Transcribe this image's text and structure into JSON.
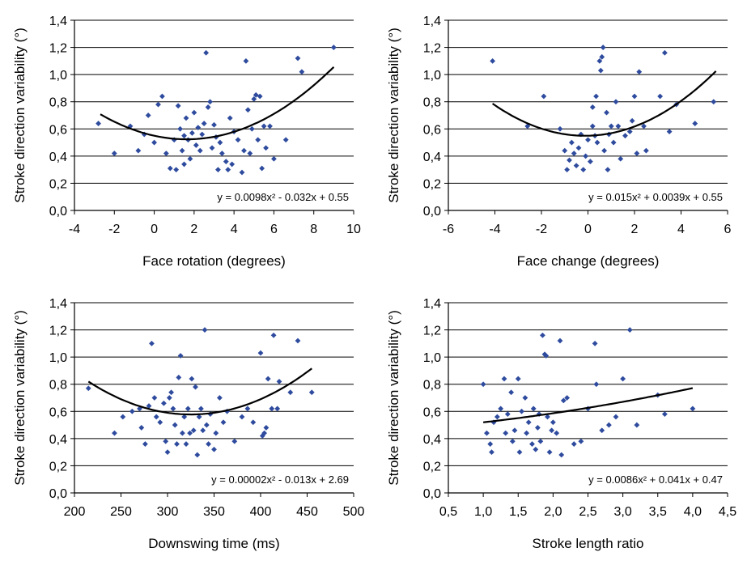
{
  "colors": {
    "point": "#2E4B9E",
    "trend": "#000000",
    "grid": "#000000",
    "axis": "#000000"
  },
  "chart_data": [
    {
      "type": "scatter",
      "title": "",
      "xlabel": "Face rotation (degrees)",
      "ylabel": "Stroke direction variability (°)",
      "xlim": [
        -4,
        10
      ],
      "ylim": [
        0,
        1.4
      ],
      "x_ticks": [
        "-4",
        "-2",
        "0",
        "2",
        "4",
        "6",
        "8",
        "10"
      ],
      "y_ticks": [
        "0,0",
        "0,2",
        "0,4",
        "0,6",
        "0,8",
        "1,0",
        "1,2",
        "1,4"
      ],
      "grid": true,
      "equation": "y = 0.0098x² - 0.032x + 0.55",
      "trend": {
        "a": 0.0098,
        "b": -0.032,
        "c": 0.55,
        "x_from": -2.7,
        "x_to": 9.0
      },
      "points": [
        [
          -2.8,
          0.64
        ],
        [
          -2.0,
          0.42
        ],
        [
          -1.2,
          0.62
        ],
        [
          -0.8,
          0.44
        ],
        [
          -0.5,
          0.56
        ],
        [
          -0.3,
          0.7
        ],
        [
          0.0,
          0.5
        ],
        [
          0.2,
          0.78
        ],
        [
          0.4,
          0.84
        ],
        [
          0.6,
          0.42
        ],
        [
          0.8,
          0.31
        ],
        [
          1.0,
          0.52
        ],
        [
          1.1,
          0.3
        ],
        [
          1.2,
          0.77
        ],
        [
          1.3,
          0.6
        ],
        [
          1.4,
          0.44
        ],
        [
          1.5,
          0.34
        ],
        [
          1.5,
          0.55
        ],
        [
          1.6,
          0.68
        ],
        [
          1.7,
          0.52
        ],
        [
          1.8,
          0.38
        ],
        [
          1.9,
          0.57
        ],
        [
          2.0,
          0.72
        ],
        [
          2.1,
          0.48
        ],
        [
          2.2,
          0.61
        ],
        [
          2.3,
          0.44
        ],
        [
          2.4,
          0.56
        ],
        [
          2.5,
          0.64
        ],
        [
          2.6,
          1.16
        ],
        [
          2.7,
          0.76
        ],
        [
          2.8,
          0.8
        ],
        [
          2.9,
          0.46
        ],
        [
          3.0,
          0.63
        ],
        [
          3.1,
          0.54
        ],
        [
          3.2,
          0.3
        ],
        [
          3.3,
          0.5
        ],
        [
          3.4,
          0.42
        ],
        [
          3.6,
          0.36
        ],
        [
          3.7,
          0.3
        ],
        [
          3.8,
          0.68
        ],
        [
          3.9,
          0.34
        ],
        [
          4.0,
          0.58
        ],
        [
          4.2,
          0.52
        ],
        [
          4.4,
          0.28
        ],
        [
          4.5,
          0.44
        ],
        [
          4.6,
          1.1
        ],
        [
          4.7,
          0.74
        ],
        [
          4.8,
          0.42
        ],
        [
          4.9,
          0.6
        ],
        [
          5.0,
          0.82
        ],
        [
          5.1,
          0.85
        ],
        [
          5.2,
          0.52
        ],
        [
          5.3,
          0.84
        ],
        [
          5.4,
          0.31
        ],
        [
          5.5,
          0.62
        ],
        [
          5.6,
          0.46
        ],
        [
          5.8,
          0.62
        ],
        [
          6.0,
          0.38
        ],
        [
          6.6,
          0.52
        ],
        [
          7.2,
          1.12
        ],
        [
          7.4,
          1.02
        ],
        [
          9.0,
          1.2
        ]
      ]
    },
    {
      "type": "scatter",
      "title": "",
      "xlabel": "Face change (degrees)",
      "ylabel": "Stroke direction variability (°)",
      "xlim": [
        -6,
        6
      ],
      "ylim": [
        0,
        1.4
      ],
      "x_ticks": [
        "-6",
        "-4",
        "-2",
        "0",
        "2",
        "4",
        "6"
      ],
      "y_ticks": [
        "0,0",
        "0,2",
        "0,4",
        "0,6",
        "0,8",
        "1,0",
        "1,2",
        "1,4"
      ],
      "grid": true,
      "equation": "y = 0.015x² + 0.0039x + 0.55",
      "trend": {
        "a": 0.015,
        "b": 0.0039,
        "c": 0.55,
        "x_from": -4.1,
        "x_to": 5.5
      },
      "points": [
        [
          -4.1,
          1.1
        ],
        [
          -2.6,
          0.62
        ],
        [
          -1.9,
          0.84
        ],
        [
          -1.2,
          0.6
        ],
        [
          -1.0,
          0.44
        ],
        [
          -0.9,
          0.3
        ],
        [
          -0.8,
          0.37
        ],
        [
          -0.7,
          0.5
        ],
        [
          -0.6,
          0.42
        ],
        [
          -0.5,
          0.33
        ],
        [
          -0.4,
          0.46
        ],
        [
          -0.3,
          0.56
        ],
        [
          -0.2,
          0.3
        ],
        [
          -0.1,
          0.4
        ],
        [
          0.0,
          0.52
        ],
        [
          0.1,
          0.36
        ],
        [
          0.2,
          0.62
        ],
        [
          0.2,
          0.76
        ],
        [
          0.3,
          0.55
        ],
        [
          0.35,
          0.84
        ],
        [
          0.4,
          0.5
        ],
        [
          0.5,
          1.1
        ],
        [
          0.55,
          1.03
        ],
        [
          0.6,
          1.13
        ],
        [
          0.65,
          1.2
        ],
        [
          0.7,
          0.44
        ],
        [
          0.8,
          0.72
        ],
        [
          0.85,
          0.3
        ],
        [
          0.9,
          0.56
        ],
        [
          1.0,
          0.62
        ],
        [
          1.1,
          0.5
        ],
        [
          1.2,
          0.8
        ],
        [
          1.3,
          0.62
        ],
        [
          1.4,
          0.38
        ],
        [
          1.6,
          0.55
        ],
        [
          1.8,
          0.58
        ],
        [
          1.9,
          0.66
        ],
        [
          2.0,
          0.84
        ],
        [
          2.1,
          0.42
        ],
        [
          2.2,
          1.02
        ],
        [
          2.4,
          0.62
        ],
        [
          2.5,
          0.44
        ],
        [
          3.1,
          0.84
        ],
        [
          3.3,
          1.16
        ],
        [
          3.5,
          0.58
        ],
        [
          3.8,
          0.78
        ],
        [
          4.6,
          0.64
        ],
        [
          5.4,
          0.8
        ]
      ]
    },
    {
      "type": "scatter",
      "title": "",
      "xlabel": "Downswing time (ms)",
      "ylabel": "Stroke direction variability (°)",
      "xlim": [
        200,
        500
      ],
      "ylim": [
        0,
        1.4
      ],
      "x_ticks": [
        "200",
        "250",
        "300",
        "350",
        "400",
        "450",
        "500"
      ],
      "y_ticks": [
        "0,0",
        "0,2",
        "0,4",
        "0,6",
        "0,8",
        "1,0",
        "1,2",
        "1,4"
      ],
      "grid": true,
      "equation": "y = 0.00002x² - 0.013x + 2.69",
      "trend": {
        "a": 2e-05,
        "b": -0.013,
        "c": 2.69,
        "x_from": 215,
        "x_to": 455
      },
      "points": [
        [
          215,
          0.77
        ],
        [
          243,
          0.44
        ],
        [
          252,
          0.56
        ],
        [
          262,
          0.6
        ],
        [
          270,
          0.62
        ],
        [
          272,
          0.48
        ],
        [
          276,
          0.36
        ],
        [
          280,
          0.64
        ],
        [
          283,
          1.1
        ],
        [
          286,
          0.7
        ],
        [
          288,
          0.56
        ],
        [
          292,
          0.52
        ],
        [
          296,
          0.66
        ],
        [
          298,
          0.38
        ],
        [
          300,
          0.3
        ],
        [
          302,
          0.7
        ],
        [
          304,
          0.74
        ],
        [
          306,
          0.62
        ],
        [
          308,
          0.5
        ],
        [
          310,
          0.36
        ],
        [
          312,
          0.85
        ],
        [
          314,
          1.01
        ],
        [
          316,
          0.44
        ],
        [
          318,
          0.56
        ],
        [
          320,
          0.36
        ],
        [
          322,
          0.62
        ],
        [
          324,
          0.44
        ],
        [
          326,
          0.84
        ],
        [
          328,
          0.46
        ],
        [
          330,
          0.78
        ],
        [
          332,
          0.28
        ],
        [
          334,
          0.56
        ],
        [
          336,
          0.62
        ],
        [
          338,
          0.46
        ],
        [
          340,
          1.2
        ],
        [
          342,
          0.5
        ],
        [
          344,
          0.36
        ],
        [
          346,
          0.58
        ],
        [
          350,
          0.32
        ],
        [
          352,
          0.44
        ],
        [
          356,
          0.7
        ],
        [
          360,
          0.52
        ],
        [
          364,
          0.6
        ],
        [
          372,
          0.38
        ],
        [
          380,
          0.56
        ],
        [
          386,
          0.62
        ],
        [
          392,
          0.52
        ],
        [
          400,
          1.03
        ],
        [
          402,
          0.42
        ],
        [
          404,
          0.44
        ],
        [
          406,
          0.48
        ],
        [
          408,
          0.84
        ],
        [
          412,
          0.62
        ],
        [
          414,
          1.16
        ],
        [
          418,
          0.62
        ],
        [
          420,
          0.82
        ],
        [
          432,
          0.74
        ],
        [
          440,
          1.12
        ],
        [
          455,
          0.74
        ]
      ]
    },
    {
      "type": "scatter",
      "title": "",
      "xlabel": "Stroke length ratio",
      "ylabel": "Stroke direction variability (°)",
      "xlim": [
        0.5,
        4.5
      ],
      "ylim": [
        0,
        1.4
      ],
      "x_ticks": [
        "0,5",
        "1,0",
        "1,5",
        "2,0",
        "2,5",
        "3,0",
        "3,5",
        "4,0",
        "4,5"
      ],
      "y_ticks": [
        "0,0",
        "0,2",
        "0,4",
        "0,6",
        "0,8",
        "1,0",
        "1,2",
        "1,4"
      ],
      "grid": true,
      "equation": "y = 0.0086x² + 0.041x + 0.47",
      "trend": {
        "a": 0.0086,
        "b": 0.041,
        "c": 0.47,
        "x_from": 1.0,
        "x_to": 4.0
      },
      "points": [
        [
          1.0,
          0.8
        ],
        [
          1.05,
          0.44
        ],
        [
          1.1,
          0.36
        ],
        [
          1.12,
          0.3
        ],
        [
          1.15,
          0.52
        ],
        [
          1.2,
          0.56
        ],
        [
          1.25,
          0.62
        ],
        [
          1.3,
          0.84
        ],
        [
          1.32,
          0.44
        ],
        [
          1.35,
          0.58
        ],
        [
          1.4,
          0.74
        ],
        [
          1.42,
          0.38
        ],
        [
          1.45,
          0.46
        ],
        [
          1.5,
          0.84
        ],
        [
          1.52,
          0.3
        ],
        [
          1.55,
          0.6
        ],
        [
          1.6,
          0.7
        ],
        [
          1.62,
          0.44
        ],
        [
          1.65,
          0.52
        ],
        [
          1.7,
          0.36
        ],
        [
          1.72,
          0.62
        ],
        [
          1.75,
          0.32
        ],
        [
          1.78,
          0.48
        ],
        [
          1.8,
          0.58
        ],
        [
          1.82,
          0.38
        ],
        [
          1.85,
          1.16
        ],
        [
          1.88,
          1.02
        ],
        [
          1.9,
          1.01
        ],
        [
          1.92,
          0.56
        ],
        [
          1.95,
          0.3
        ],
        [
          1.98,
          0.46
        ],
        [
          2.0,
          0.52
        ],
        [
          2.05,
          0.44
        ],
        [
          2.1,
          1.12
        ],
        [
          2.12,
          0.28
        ],
        [
          2.15,
          0.68
        ],
        [
          2.2,
          0.7
        ],
        [
          2.3,
          0.36
        ],
        [
          2.4,
          0.38
        ],
        [
          2.5,
          0.62
        ],
        [
          2.6,
          1.1
        ],
        [
          2.62,
          0.8
        ],
        [
          2.7,
          0.46
        ],
        [
          2.8,
          0.5
        ],
        [
          2.9,
          0.56
        ],
        [
          3.0,
          0.84
        ],
        [
          3.1,
          1.2
        ],
        [
          3.2,
          0.5
        ],
        [
          3.5,
          0.72
        ],
        [
          3.6,
          0.58
        ],
        [
          4.0,
          0.62
        ]
      ]
    }
  ]
}
